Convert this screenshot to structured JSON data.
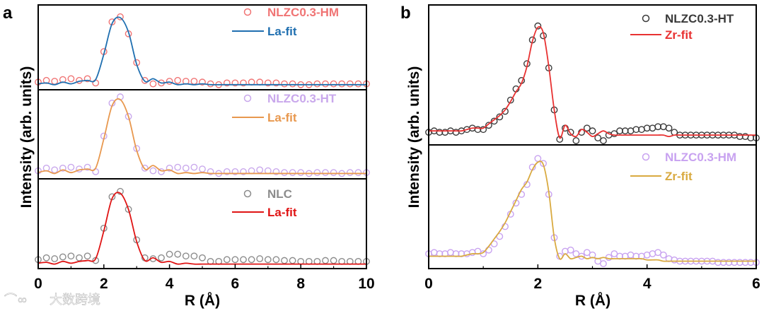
{
  "watermark": "大数跨境",
  "chart_data": [
    {
      "type": "line",
      "panel": "a",
      "xlabel": "R (Å)",
      "ylabel": "Intensity (arb. units)",
      "xlim": [
        0,
        10
      ],
      "xticks": [
        "0",
        "2",
        "4",
        "6",
        "8",
        "10"
      ],
      "xtick_values": [
        0,
        2,
        4,
        6,
        8,
        10
      ],
      "minor_xticks": [
        1,
        3,
        5,
        7,
        9
      ],
      "x_step": 0.25,
      "subplots": [
        {
          "data_label": "NLZC0.3-HM",
          "fit_label": "La-fit",
          "data_color": "#f07474",
          "fit_color": "#1f6fb0",
          "data": [
            0.09,
            0.11,
            0.1,
            0.12,
            0.13,
            0.11,
            0.13,
            0.08,
            0.45,
            0.8,
            0.86,
            0.66,
            0.32,
            0.11,
            0.07,
            0.08,
            0.1,
            0.11,
            0.1,
            0.1,
            0.09,
            0.07,
            0.06,
            0.08,
            0.08,
            0.08,
            0.09,
            0.09,
            0.08,
            0.08,
            0.07,
            0.07,
            0.06,
            0.06,
            0.07,
            0.07,
            0.07,
            0.07,
            0.07,
            0.07,
            0.07
          ],
          "fit": [
            0.07,
            0.08,
            0.06,
            0.09,
            0.07,
            0.1,
            0.11,
            0.12,
            0.42,
            0.78,
            0.85,
            0.68,
            0.3,
            0.1,
            0.13,
            0.08,
            0.09,
            0.06,
            0.07,
            0.06,
            0.07,
            0.06,
            0.06,
            0.06,
            0.06,
            0.06,
            0.06,
            0.06,
            0.06,
            0.06,
            0.06,
            0.06,
            0.06,
            0.06,
            0.06,
            0.06,
            0.06,
            0.06,
            0.06,
            0.06,
            0.06
          ]
        },
        {
          "data_label": "NLZC0.3-HT",
          "fit_label": "La-fit",
          "data_color": "#c9a8ec",
          "fit_color": "#e8984e",
          "data": [
            0.09,
            0.12,
            0.1,
            0.12,
            0.13,
            0.11,
            0.13,
            0.08,
            0.48,
            0.85,
            0.92,
            0.7,
            0.34,
            0.12,
            0.09,
            0.08,
            0.12,
            0.13,
            0.12,
            0.13,
            0.11,
            0.08,
            0.06,
            0.08,
            0.08,
            0.08,
            0.09,
            0.1,
            0.09,
            0.08,
            0.07,
            0.07,
            0.07,
            0.06,
            0.07,
            0.07,
            0.07,
            0.06,
            0.07,
            0.07,
            0.07
          ],
          "fit": [
            0.07,
            0.09,
            0.06,
            0.1,
            0.07,
            0.1,
            0.11,
            0.12,
            0.45,
            0.82,
            0.89,
            0.7,
            0.32,
            0.11,
            0.15,
            0.09,
            0.1,
            0.06,
            0.07,
            0.06,
            0.07,
            0.06,
            0.06,
            0.06,
            0.06,
            0.06,
            0.06,
            0.06,
            0.06,
            0.06,
            0.06,
            0.06,
            0.06,
            0.06,
            0.06,
            0.06,
            0.06,
            0.06,
            0.06,
            0.06,
            0.06
          ]
        },
        {
          "data_label": "NLC",
          "fit_label": "La-fit",
          "data_color": "#8c8c8c",
          "fit_color": "#e01414",
          "data": [
            0.1,
            0.12,
            0.11,
            0.13,
            0.14,
            0.12,
            0.14,
            0.09,
            0.45,
            0.8,
            0.86,
            0.66,
            0.32,
            0.12,
            0.11,
            0.12,
            0.16,
            0.16,
            0.14,
            0.14,
            0.12,
            0.08,
            0.08,
            0.1,
            0.1,
            0.1,
            0.1,
            0.11,
            0.1,
            0.1,
            0.09,
            0.09,
            0.08,
            0.08,
            0.08,
            0.09,
            0.09,
            0.08,
            0.08,
            0.08,
            0.08
          ],
          "fit": [
            0.06,
            0.07,
            0.05,
            0.08,
            0.06,
            0.08,
            0.09,
            0.11,
            0.42,
            0.78,
            0.84,
            0.66,
            0.3,
            0.09,
            0.12,
            0.07,
            0.08,
            0.05,
            0.06,
            0.05,
            0.05,
            0.05,
            0.05,
            0.05,
            0.05,
            0.05,
            0.05,
            0.05,
            0.05,
            0.05,
            0.05,
            0.05,
            0.05,
            0.05,
            0.05,
            0.05,
            0.05,
            0.05,
            0.05,
            0.05,
            0.05
          ]
        }
      ]
    },
    {
      "type": "line",
      "panel": "b",
      "xlabel": "R (Å)",
      "ylabel": "Intensity (arb. units)",
      "xlim": [
        0,
        6
      ],
      "xticks": [
        "0",
        "2",
        "4",
        "6"
      ],
      "xtick_values": [
        0,
        2,
        4,
        6
      ],
      "minor_xticks": [
        1,
        3,
        5
      ],
      "x_step": 0.1,
      "subplots": [
        {
          "data_label": "NLZC0.3-HT",
          "fit_label": "Zr-fit",
          "data_color": "#3a3a3a",
          "fit_color": "#e83232",
          "data": [
            0.09,
            0.1,
            0.09,
            0.09,
            0.1,
            0.09,
            0.1,
            0.11,
            0.12,
            0.11,
            0.11,
            0.14,
            0.17,
            0.2,
            0.24,
            0.32,
            0.4,
            0.46,
            0.58,
            0.75,
            0.85,
            0.78,
            0.55,
            0.25,
            0.04,
            0.12,
            0.09,
            0.03,
            0.09,
            0.12,
            0.1,
            0.05,
            0.03,
            0.07,
            0.08,
            0.1,
            0.1,
            0.1,
            0.11,
            0.11,
            0.12,
            0.12,
            0.13,
            0.13,
            0.12,
            0.09,
            0.07,
            0.07,
            0.07,
            0.07,
            0.07,
            0.07,
            0.07,
            0.07,
            0.07,
            0.07,
            0.07,
            0.06,
            0.06,
            0.05,
            0.05
          ],
          "fit": [
            0.1,
            0.1,
            0.1,
            0.1,
            0.1,
            0.1,
            0.1,
            0.11,
            0.12,
            0.12,
            0.12,
            0.15,
            0.18,
            0.21,
            0.25,
            0.31,
            0.38,
            0.44,
            0.56,
            0.74,
            0.84,
            0.8,
            0.56,
            0.25,
            0.05,
            0.14,
            0.08,
            0.06,
            0.11,
            0.09,
            0.06,
            0.08,
            0.1,
            0.08,
            0.07,
            0.07,
            0.07,
            0.07,
            0.07,
            0.07,
            0.07,
            0.07,
            0.07,
            0.07,
            0.06,
            0.07,
            0.07,
            0.07,
            0.07,
            0.07,
            0.07,
            0.07,
            0.07,
            0.07,
            0.07,
            0.07,
            0.07,
            0.07,
            0.07,
            0.07,
            0.07
          ]
        },
        {
          "data_label": "NLZC0.3-HM",
          "fit_label": "Zr-fit",
          "data_color": "#c8a2f0",
          "fit_color": "#d9aa40",
          "data": [
            0.12,
            0.13,
            0.12,
            0.12,
            0.13,
            0.12,
            0.12,
            0.12,
            0.13,
            0.14,
            0.12,
            0.15,
            0.2,
            0.26,
            0.34,
            0.44,
            0.53,
            0.6,
            0.68,
            0.82,
            0.89,
            0.85,
            0.6,
            0.25,
            0.1,
            0.14,
            0.15,
            0.12,
            0.1,
            0.13,
            0.11,
            0.06,
            0.04,
            0.09,
            0.12,
            0.1,
            0.1,
            0.11,
            0.1,
            0.1,
            0.11,
            0.12,
            0.13,
            0.11,
            0.08,
            0.07,
            0.06,
            0.06,
            0.06,
            0.06,
            0.06,
            0.06,
            0.06,
            0.05,
            0.05,
            0.05,
            0.05,
            0.05,
            0.05,
            0.05,
            0.05
          ],
          "fit": [
            0.1,
            0.1,
            0.1,
            0.1,
            0.1,
            0.1,
            0.1,
            0.11,
            0.12,
            0.12,
            0.13,
            0.18,
            0.24,
            0.3,
            0.37,
            0.46,
            0.55,
            0.64,
            0.7,
            0.8,
            0.86,
            0.84,
            0.62,
            0.25,
            0.08,
            0.12,
            0.08,
            0.09,
            0.1,
            0.08,
            0.09,
            0.08,
            0.09,
            0.08,
            0.08,
            0.08,
            0.08,
            0.08,
            0.08,
            0.08,
            0.07,
            0.07,
            0.07,
            0.06,
            0.06,
            0.06,
            0.06,
            0.06,
            0.06,
            0.06,
            0.06,
            0.06,
            0.06,
            0.06,
            0.06,
            0.06,
            0.06,
            0.06,
            0.06,
            0.06,
            0.06
          ]
        }
      ]
    }
  ],
  "panels": {
    "a": "a",
    "b": "b"
  }
}
